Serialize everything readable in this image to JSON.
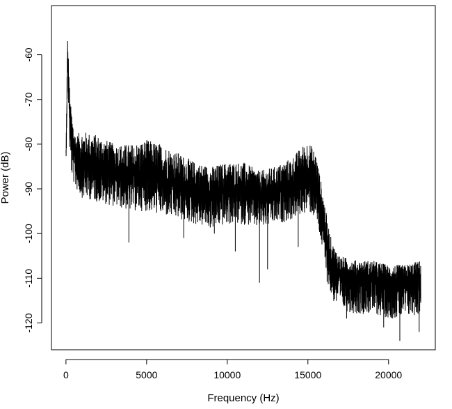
{
  "chart_data": {
    "type": "line",
    "title": "",
    "xlabel": "Frequency (Hz)",
    "ylabel": "Power (dB)",
    "xlim": [
      -900,
      22900
    ],
    "ylim": [
      -126,
      -49
    ],
    "xticks": [
      0,
      5000,
      10000,
      15000,
      20000
    ],
    "yticks": [
      -60,
      -70,
      -80,
      -90,
      -100,
      -110,
      -120
    ],
    "xtick_labels": [
      "0",
      "5000",
      "10000",
      "15000",
      "20000"
    ],
    "ytick_labels": [
      "-60",
      "-70",
      "-80",
      "-90",
      "-100",
      "-110",
      "-120"
    ],
    "grid": false,
    "legend": "none",
    "line_color": "#000000",
    "series": [
      {
        "envelope": {
          "x": [
            0,
            100,
            150,
            250,
            400,
            600,
            1000,
            2000,
            3000,
            4000,
            5000,
            6000,
            7000,
            8000,
            9000,
            10000,
            11000,
            12000,
            13000,
            14000,
            14500,
            15000,
            15500,
            15800,
            16000,
            16200,
            16500,
            17000,
            18000,
            19000,
            20000,
            21000,
            22000
          ],
          "upper": [
            -80,
            -56,
            -60,
            -70,
            -74,
            -78,
            -77,
            -78,
            -80,
            -80,
            -79,
            -80,
            -82,
            -84,
            -85,
            -84,
            -84,
            -86,
            -85,
            -83,
            -81,
            -79,
            -82,
            -88,
            -92,
            -97,
            -102,
            -105,
            -106,
            -106,
            -107,
            -107,
            -106
          ],
          "mean": [
            -84,
            -60,
            -65,
            -75,
            -80,
            -83,
            -84,
            -85,
            -86,
            -87,
            -87,
            -88,
            -89,
            -90,
            -91,
            -90,
            -90,
            -91,
            -90,
            -89,
            -88,
            -87,
            -88,
            -94,
            -98,
            -103,
            -107,
            -109,
            -110,
            -110,
            -111,
            -111,
            -110
          ],
          "lower": [
            -86,
            -66,
            -70,
            -85,
            -88,
            -90,
            -92,
            -93,
            -94,
            -95,
            -95,
            -96,
            -97,
            -98,
            -99,
            -98,
            -98,
            -99,
            -98,
            -97,
            -96,
            -95,
            -97,
            -102,
            -106,
            -111,
            -115,
            -117,
            -118,
            -118,
            -119,
            -119,
            -118
          ]
        },
        "spikes": [
          {
            "x": 800,
            "y": -87
          },
          {
            "x": 3900,
            "y": -102
          },
          {
            "x": 7300,
            "y": -101
          },
          {
            "x": 9200,
            "y": -100
          },
          {
            "x": 10500,
            "y": -104
          },
          {
            "x": 12000,
            "y": -111
          },
          {
            "x": 12500,
            "y": -108
          },
          {
            "x": 14400,
            "y": -103
          },
          {
            "x": 17400,
            "y": -119
          },
          {
            "x": 19700,
            "y": -121
          },
          {
            "x": 20700,
            "y": -124
          },
          {
            "x": 21900,
            "y": -122
          }
        ]
      }
    ]
  }
}
